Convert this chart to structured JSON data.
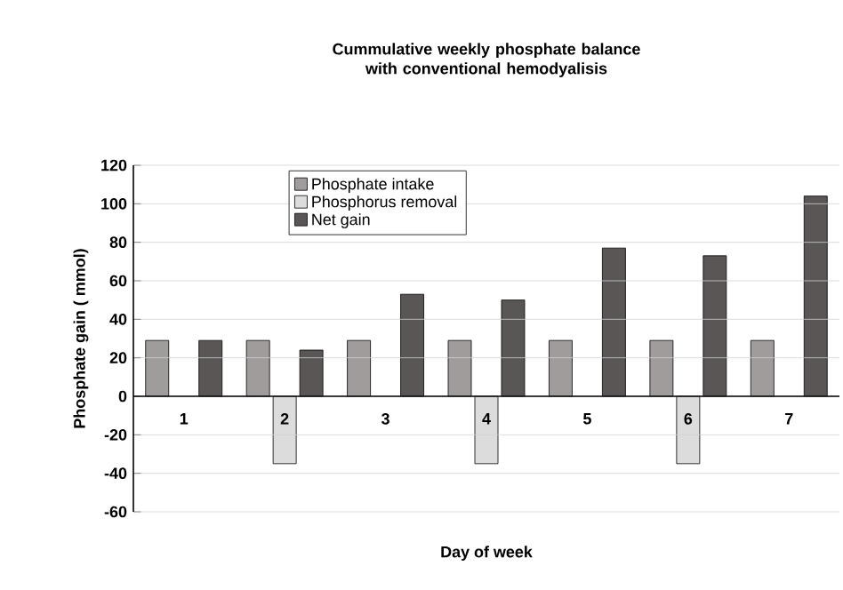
{
  "chart_data": {
    "type": "bar",
    "title": "Cummulative weekly phosphate balance\nwith conventional hemodyalisis",
    "xlabel": "Day of week",
    "ylabel": "Phosphate gain ( mmol)",
    "categories": [
      "1",
      "2",
      "3",
      "4",
      "5",
      "6",
      "7"
    ],
    "series": [
      {
        "name": "Phosphate intake",
        "color": "#a09c9c",
        "values": [
          29,
          29,
          29,
          29,
          29,
          29,
          29
        ]
      },
      {
        "name": "Phosphorus removal",
        "color": "#dcdcdc",
        "values": [
          null,
          -35,
          null,
          -35,
          null,
          -35,
          null
        ]
      },
      {
        "name": "Net gain",
        "color": "#5a5656",
        "values": [
          29,
          24,
          53,
          50,
          77,
          73,
          104
        ]
      }
    ],
    "ylim": [
      -60,
      120
    ],
    "yticks": [
      -60,
      -40,
      -20,
      0,
      20,
      40,
      60,
      80,
      100,
      120
    ],
    "grid": "y",
    "legend": "top"
  }
}
